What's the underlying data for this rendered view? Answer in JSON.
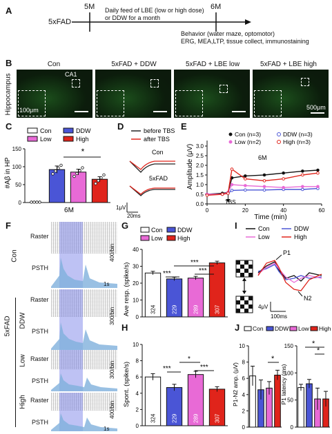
{
  "panels": {
    "A": "A",
    "B": "B",
    "C": "C",
    "D": "D",
    "E": "E",
    "F": "F",
    "G": "G",
    "H": "H",
    "I": "I",
    "J": "J"
  },
  "a": {
    "strain": "5xFAD",
    "t1": "5M",
    "t2": "6M",
    "feed_line1": "Daily feed of LBE (low or high dose)",
    "feed_line2": "or DDW for a month",
    "behavior_line1": "Behavior (water maze, optomotor)",
    "behavior_line2": "ERG, MEA,LTP, tissue collect, immunostaining"
  },
  "b": {
    "side_label": "Hippocampus",
    "titles": [
      "Con",
      "5xFAD + DDW",
      "5xFAD + LBE low",
      "5xFAD + LBE high"
    ],
    "ca1": "CA1",
    "scale_inset": "100μm",
    "scale_main": "500μm"
  },
  "c": {
    "ylabel": "#Aβ in HP",
    "xlabel": "6M",
    "star": "*",
    "legend": [
      "Con",
      "DDW",
      "Low",
      "High"
    ],
    "yticks": [
      "0",
      "50",
      "100",
      "150"
    ]
  },
  "d": {
    "legend": [
      "before TBS",
      "after TBS"
    ],
    "label_con": "Con",
    "label_fad": "5xFAD",
    "scale_v": "1μV",
    "scale_t": "20ms"
  },
  "e": {
    "ylabel": "Amplitude (μV)",
    "xlabel": "Time (min)",
    "legend": [
      "Con (n=3)",
      "DDW (n=3)",
      "Low (n=2)",
      "High (n=3)"
    ],
    "annot": "6M",
    "tbs": "TBS",
    "yticks": [
      "0.0",
      "0.5",
      "1.0",
      "1.5",
      "2.0",
      "2.5",
      "3.0"
    ],
    "xticks": [
      "0",
      "20",
      "40",
      "60"
    ]
  },
  "f": {
    "side": "5xFAD",
    "groups": [
      "Con",
      "DDW",
      "Low",
      "High"
    ],
    "raster": "Raster",
    "psth": "PSTH",
    "scales": [
      "400/bin",
      "300/bin",
      "300/bin",
      "400/bin"
    ],
    "time": "1s"
  },
  "g": {
    "ylabel": "Ave resp. (spike/s)",
    "legend": [
      "Con",
      "DDW",
      "Low",
      "High"
    ],
    "stars": [
      "***",
      "***",
      "***"
    ],
    "n": [
      "324",
      "229",
      "289",
      "307"
    ],
    "yticks": [
      "0",
      "10",
      "20",
      "30",
      "40"
    ]
  },
  "h": {
    "ylabel": "Spont. (spike/s)",
    "stars": [
      "***",
      "*",
      "***"
    ],
    "n": [
      "324",
      "229",
      "289",
      "307"
    ],
    "yticks": [
      "0",
      "2",
      "4",
      "6",
      "8",
      "10"
    ]
  },
  "i": {
    "legend": [
      "Con",
      "DDW",
      "Low",
      "High"
    ],
    "p1": "P1",
    "n2": "N2",
    "scale_v": "4μV",
    "scale_t": "100ms"
  },
  "j": {
    "legend": [
      "Con",
      "DDW",
      "Low",
      "High"
    ],
    "ylabel_left": "P1-N2 amp. (μV)",
    "ylabel_right": "P1 latency (ms)",
    "stars_left": [
      "*"
    ],
    "stars_right": [
      "*",
      "*"
    ],
    "yticks_left": [
      "0",
      "2",
      "4",
      "6",
      "8",
      "10"
    ],
    "yticks_right": [
      "0",
      "50",
      "100",
      "150"
    ]
  },
  "colors": {
    "con": "#ffffff",
    "ddw": "#4a55d6",
    "low": "#e86ad6",
    "high": "#e0241b",
    "stim": "#8a92e8"
  },
  "chart_data": [
    {
      "panel": "C",
      "type": "bar",
      "categories": [
        "Con",
        "DDW",
        "Low",
        "High"
      ],
      "values": [
        0,
        92,
        85,
        65
      ],
      "errors": [
        0,
        10,
        8,
        7
      ],
      "ylim": [
        0,
        150
      ]
    },
    {
      "panel": "E",
      "type": "line",
      "xlim": [
        0,
        60
      ],
      "ylim": [
        0,
        3
      ],
      "series": [
        {
          "name": "Con (n=3)",
          "x": [
            0,
            8,
            11,
            13,
            20,
            30,
            40,
            50,
            58
          ],
          "y": [
            0.5,
            0.55,
            0.6,
            1.35,
            1.45,
            1.5,
            1.6,
            1.7,
            1.75
          ]
        },
        {
          "name": "DDW (n=3)",
          "x": [
            0,
            8,
            11,
            13,
            20,
            30,
            40,
            50,
            58
          ],
          "y": [
            0.5,
            0.5,
            0.55,
            0.7,
            0.72,
            0.72,
            0.75,
            0.75,
            0.8
          ]
        },
        {
          "name": "Low (n=2)",
          "x": [
            0,
            8,
            11,
            13,
            20,
            30,
            40,
            50,
            58
          ],
          "y": [
            0.5,
            0.5,
            0.6,
            1.0,
            0.95,
            0.9,
            0.85,
            0.9,
            0.9
          ]
        },
        {
          "name": "High (n=3)",
          "x": [
            0,
            8,
            11,
            13,
            20,
            30,
            40,
            50,
            58
          ],
          "y": [
            0.45,
            0.5,
            0.55,
            1.8,
            1.3,
            1.2,
            1.3,
            1.5,
            1.6
          ]
        }
      ]
    },
    {
      "panel": "G",
      "type": "bar",
      "categories": [
        "Con",
        "DDW",
        "Low",
        "High"
      ],
      "values": [
        26,
        22.5,
        23,
        32
      ],
      "errors": [
        1,
        1,
        1,
        1
      ],
      "ylim": [
        0,
        40
      ]
    },
    {
      "panel": "H",
      "type": "bar",
      "categories": [
        "Con",
        "DDW",
        "Low",
        "High"
      ],
      "values": [
        6,
        4.7,
        6.3,
        4.5
      ],
      "errors": [
        0.4,
        0.4,
        0.4,
        0.3
      ],
      "ylim": [
        0,
        10
      ]
    },
    {
      "panel": "J-left",
      "type": "bar",
      "categories": [
        "Con",
        "DDW",
        "Low",
        "High"
      ],
      "values": [
        6.3,
        4.6,
        4.8,
        6.4
      ],
      "errors": [
        1.2,
        1.2,
        0.8,
        0.6
      ],
      "ylim": [
        0,
        10
      ]
    },
    {
      "panel": "J-right",
      "type": "bar",
      "categories": [
        "Con",
        "DDW",
        "Low",
        "High"
      ],
      "values": [
        73,
        80,
        52,
        52
      ],
      "errors": [
        6,
        8,
        20,
        14
      ],
      "ylim": [
        0,
        150
      ]
    }
  ]
}
